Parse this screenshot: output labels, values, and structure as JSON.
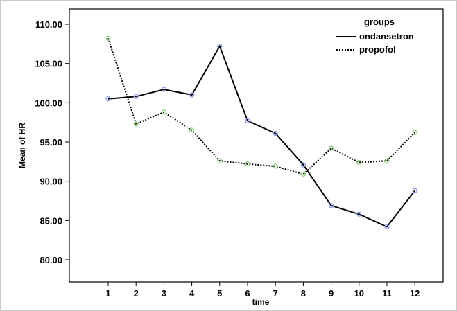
{
  "chart_data": {
    "type": "line",
    "xlabel": "time",
    "ylabel": "Mean of HR",
    "categories": [
      "1",
      "2",
      "3",
      "4",
      "5",
      "6",
      "7",
      "8",
      "9",
      "10",
      "11",
      "12"
    ],
    "ylim": [
      80,
      110
    ],
    "yticks": [
      "80.00",
      "85.00",
      "90.00",
      "95.00",
      "100.00",
      "105.00",
      "110.00"
    ],
    "legend": {
      "title": "groups",
      "position": "top-right"
    },
    "series": [
      {
        "name": "ondansetron",
        "line_style": "solid",
        "marker_color": "#8c9be0",
        "values": [
          100.5,
          100.8,
          101.7,
          101.0,
          107.2,
          97.7,
          96.1,
          92.1,
          86.9,
          85.8,
          84.2,
          88.8
        ]
      },
      {
        "name": "propofol",
        "line_style": "dotted",
        "marker_color": "#8fd07f",
        "values": [
          108.2,
          97.3,
          98.8,
          96.5,
          92.6,
          92.2,
          91.9,
          90.9,
          94.2,
          92.4,
          92.6,
          96.2
        ]
      }
    ],
    "grid": false
  }
}
